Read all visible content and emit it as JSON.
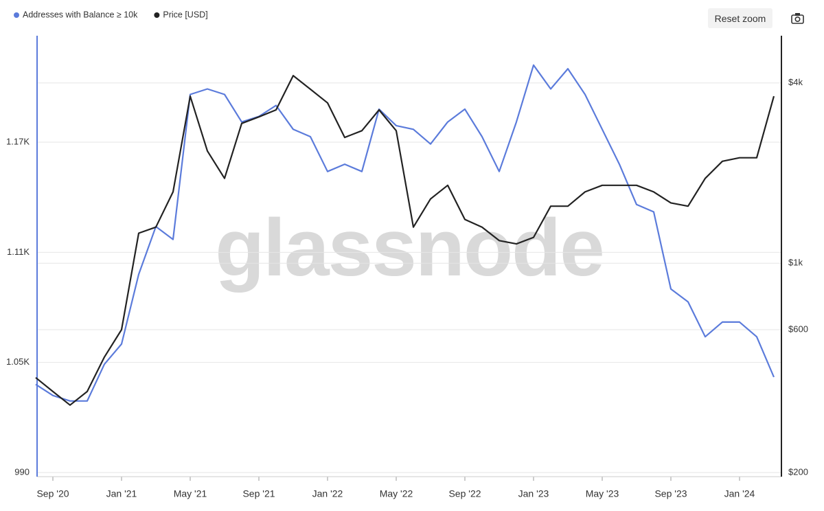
{
  "chart_data": {
    "type": "line",
    "watermark": "glassnode",
    "reset_button": "Reset zoom",
    "x": [
      "2020-08",
      "2020-09",
      "2020-10",
      "2020-11",
      "2020-12",
      "2021-01",
      "2021-02",
      "2021-03",
      "2021-04",
      "2021-05",
      "2021-06",
      "2021-07",
      "2021-08",
      "2021-09",
      "2021-10",
      "2021-11",
      "2021-12",
      "2022-01",
      "2022-02",
      "2022-03",
      "2022-04",
      "2022-05",
      "2022-06",
      "2022-07",
      "2022-08",
      "2022-09",
      "2022-10",
      "2022-11",
      "2022-12",
      "2023-01",
      "2023-02",
      "2023-03",
      "2023-04",
      "2023-05",
      "2023-06",
      "2023-07",
      "2023-08",
      "2023-09",
      "2023-10",
      "2023-11",
      "2023-12",
      "2024-01",
      "2024-02",
      "2024-03"
    ],
    "xlim": [
      "2020-08",
      "2024-03"
    ],
    "xticks": [
      {
        "value": "2020-09",
        "label": "Sep '20"
      },
      {
        "value": "2021-01",
        "label": "Jan '21"
      },
      {
        "value": "2021-05",
        "label": "May '21"
      },
      {
        "value": "2021-09",
        "label": "Sep '21"
      },
      {
        "value": "2022-01",
        "label": "Jan '22"
      },
      {
        "value": "2022-05",
        "label": "May '22"
      },
      {
        "value": "2022-09",
        "label": "Sep '22"
      },
      {
        "value": "2023-01",
        "label": "Jan '23"
      },
      {
        "value": "2023-05",
        "label": "May '23"
      },
      {
        "value": "2023-09",
        "label": "Sep '23"
      },
      {
        "value": "2024-01",
        "label": "Jan '24"
      }
    ],
    "ylim": [
      990,
      1228
    ],
    "yticks": [
      990,
      {
        "value": 1050,
        "label": "1.05K"
      },
      {
        "value": 1110,
        "label": "1.11K"
      },
      {
        "value": 1170,
        "label": "1.17K"
      }
    ],
    "y2lim": [
      200,
      5750
    ],
    "y2_log": true,
    "y2ticks": [
      {
        "value": 200,
        "label": "$200"
      },
      {
        "value": 600,
        "label": "$600"
      },
      {
        "value": 1000,
        "label": "$1k"
      },
      {
        "value": 4000,
        "label": "$4k"
      }
    ],
    "grid": true,
    "series": [
      {
        "name": "Addresses with Balance ≥ 10k",
        "color": "#5b7bdb",
        "axis": "y",
        "values": [
          1038,
          1032,
          1029,
          1029,
          1049,
          1060,
          1098,
          1124,
          1117,
          1196,
          1199,
          1196,
          1181,
          1184,
          1190,
          1177,
          1173,
          1154,
          1158,
          1154,
          1188,
          1179,
          1177,
          1169,
          1181,
          1188,
          1173,
          1154,
          1181,
          1212,
          1199,
          1210,
          1196,
          1177,
          1158,
          1136,
          1132,
          1090,
          1083,
          1064,
          1072,
          1072,
          1064,
          1042
        ]
      },
      {
        "name": "Price [USD]",
        "color": "#222222",
        "axis": "y2",
        "values": [
          415,
          373,
          336,
          373,
          486,
          600,
          1260,
          1320,
          1730,
          3610,
          2370,
          1920,
          2930,
          3080,
          3250,
          4230,
          3810,
          3430,
          2630,
          2770,
          3250,
          2770,
          1320,
          1640,
          1820,
          1400,
          1320,
          1190,
          1160,
          1220,
          1550,
          1550,
          1730,
          1820,
          1820,
          1820,
          1730,
          1590,
          1550,
          1920,
          2190,
          2250,
          2250,
          3610
        ]
      }
    ]
  }
}
